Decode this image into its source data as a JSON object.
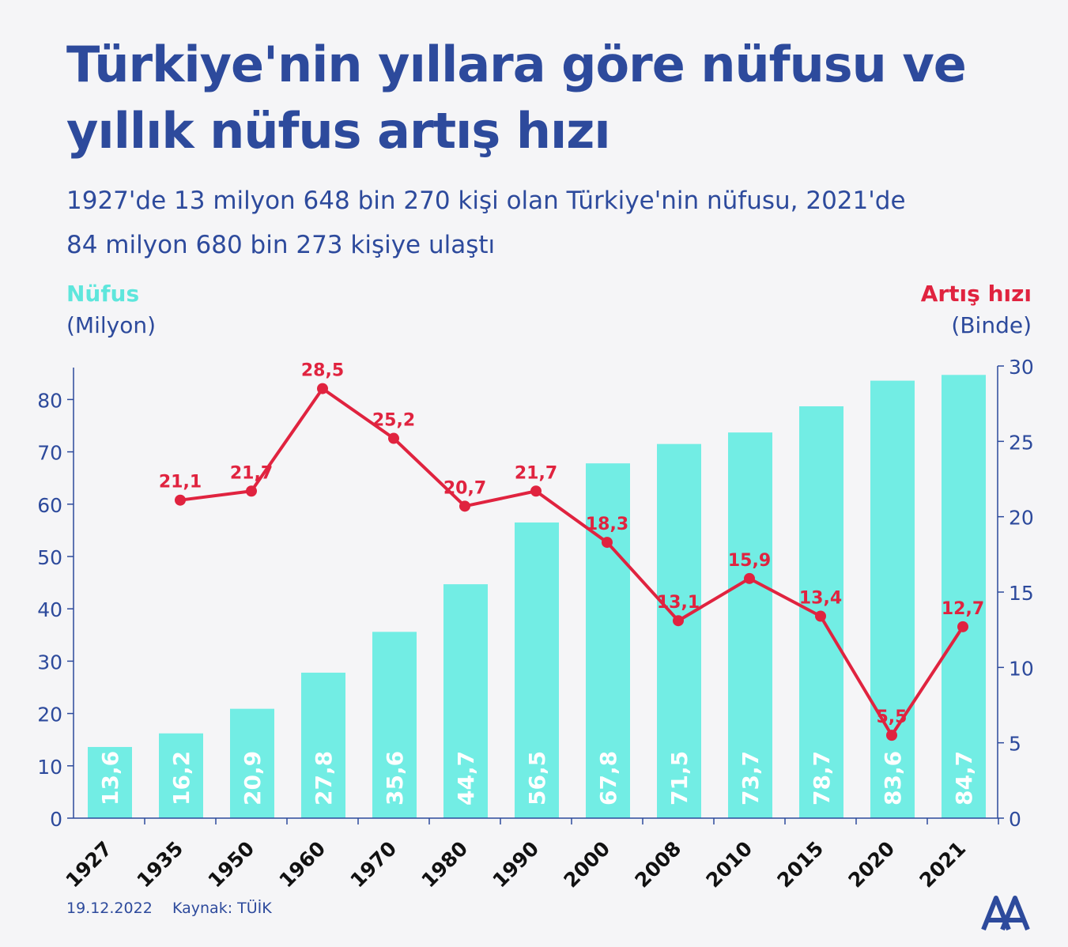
{
  "title_lines": [
    "Türkiye'nin yıllara göre nüfusu ve",
    "yıllık nüfus artış hızı"
  ],
  "subtitle_lines": [
    "1927'de 13 milyon 648 bin 270 kişi olan Türkiye'nin nüfusu, 2021'de",
    "84 milyon 680 bin 273 kişiye ulaştı"
  ],
  "left_axis": {
    "name": "Nüfus",
    "unit": "(Milyon)"
  },
  "right_axis": {
    "name": "Artış hızı",
    "unit": "(Binde)"
  },
  "footer": {
    "date": "19.12.2022",
    "source": "Kaynak: TÜİK"
  },
  "logo": {
    "icon": "aa-logo-icon"
  },
  "colors": {
    "bars": "#72ede4",
    "line": "#e0233f",
    "text": "#2d4a9c",
    "bar_label": "#ffffff"
  },
  "chart_data": {
    "type": "bar+line",
    "categories": [
      "1927",
      "1935",
      "1950",
      "1960",
      "1970",
      "1980",
      "1990",
      "2000",
      "2008",
      "2010",
      "2015",
      "2020",
      "2021"
    ],
    "series": [
      {
        "name": "Nüfus",
        "type": "bar",
        "axis": "left",
        "values": [
          13.6,
          16.2,
          20.9,
          27.8,
          35.6,
          44.7,
          56.5,
          67.8,
          71.5,
          73.7,
          78.7,
          83.6,
          84.7
        ],
        "labels": [
          "13,6",
          "16,2",
          "20,9",
          "27,8",
          "35,6",
          "44,7",
          "56,5",
          "67,8",
          "71,5",
          "73,7",
          "78,7",
          "83,6",
          "84,7"
        ]
      },
      {
        "name": "Artış hızı",
        "type": "line",
        "axis": "right",
        "values": [
          null,
          21.1,
          21.7,
          28.5,
          25.2,
          20.7,
          21.7,
          18.3,
          13.1,
          15.9,
          13.4,
          5.5,
          12.7
        ],
        "labels": [
          null,
          "21,1",
          "21,7",
          "28,5",
          "25,2",
          "20,7",
          "21,7",
          "18,3",
          "13,1",
          "15,9",
          "13,4",
          "5,5",
          "12,7"
        ]
      }
    ],
    "left_axis": {
      "ylim": [
        0,
        86.5
      ],
      "ticks": [
        0,
        10,
        20,
        30,
        40,
        50,
        60,
        70,
        80
      ]
    },
    "right_axis": {
      "ylim": [
        0,
        30
      ],
      "ticks": [
        0,
        5,
        10,
        15,
        20,
        25,
        30
      ]
    },
    "grid": false
  }
}
